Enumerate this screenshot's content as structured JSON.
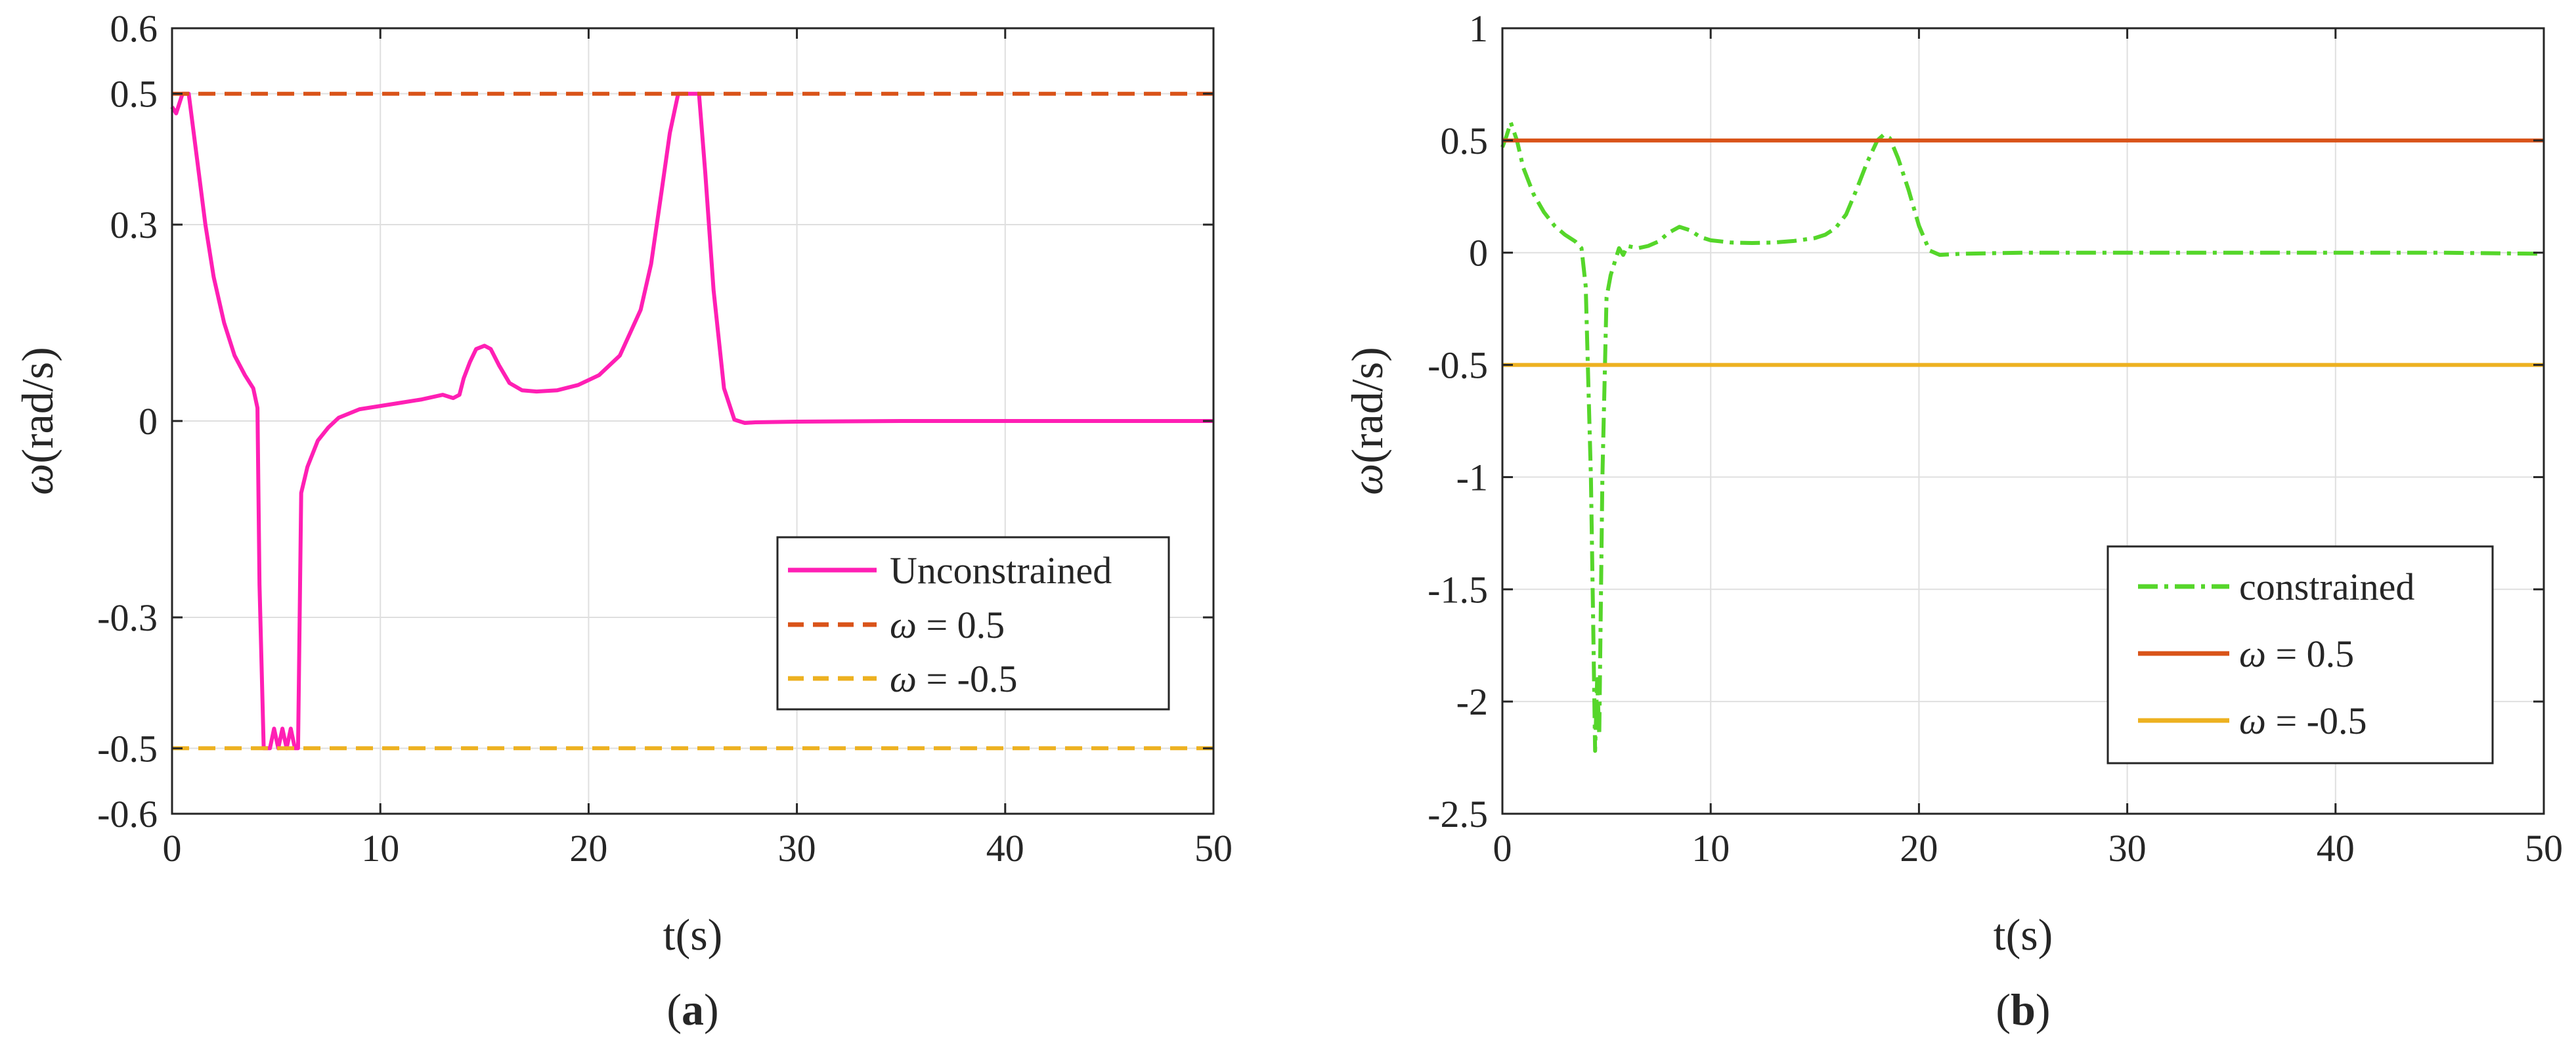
{
  "chart_data": [
    {
      "type": "line",
      "id": "a",
      "caption": {
        "open": "(",
        "letter": "a",
        "close": ")"
      },
      "xlabel": "t(s)",
      "ylabel_symbol": "ω",
      "ylabel_unit": "(rad/s)",
      "xlim": [
        0,
        50
      ],
      "ylim": [
        -0.6,
        0.6
      ],
      "xticks": [
        0,
        10,
        20,
        30,
        40,
        50
      ],
      "xtick_labels": [
        "0",
        "10",
        "20",
        "30",
        "40",
        "50"
      ],
      "yticks": [
        -0.6,
        -0.5,
        -0.3,
        0,
        0.3,
        0.5,
        0.6
      ],
      "ytick_labels": [
        "-0.6",
        "-0.5",
        "-0.3",
        "0",
        "0.3",
        "0.5",
        "0.6"
      ],
      "grid": true,
      "legend_position": "lower-right",
      "series": [
        {
          "name": "Unconstrained",
          "symbol": "",
          "equals": "",
          "color": "#ff1fb4",
          "style": "solid",
          "x": [
            0,
            0.2,
            0.5,
            0.8,
            1.2,
            1.6,
            2.0,
            2.5,
            3.0,
            3.5,
            3.9,
            4.1,
            4.2,
            4.4,
            4.7,
            4.9,
            5.1,
            5.3,
            5.5,
            5.7,
            5.9,
            6.05,
            6.2,
            6.5,
            7.0,
            7.5,
            8.0,
            9.0,
            10.0,
            11.0,
            12.0,
            13.0,
            13.5,
            13.8,
            14.0,
            14.3,
            14.6,
            15.0,
            15.3,
            15.7,
            16.2,
            16.8,
            17.5,
            18.5,
            19.5,
            20.5,
            21.5,
            22.5,
            23.0,
            23.5,
            23.9,
            24.3,
            24.5,
            25.0,
            25.3,
            25.6,
            26.0,
            26.5,
            27.0,
            27.5,
            28.0,
            30.0,
            35.0,
            40.0,
            45.0,
            50.0
          ],
          "y": [
            0.48,
            0.47,
            0.5,
            0.5,
            0.4,
            0.3,
            0.22,
            0.15,
            0.1,
            0.07,
            0.05,
            0.02,
            -0.25,
            -0.5,
            -0.5,
            -0.47,
            -0.5,
            -0.47,
            -0.5,
            -0.47,
            -0.5,
            -0.5,
            -0.11,
            -0.07,
            -0.03,
            -0.01,
            0.005,
            0.018,
            0.023,
            0.028,
            0.033,
            0.04,
            0.035,
            0.04,
            0.065,
            0.09,
            0.11,
            0.115,
            0.11,
            0.085,
            0.058,
            0.047,
            0.045,
            0.047,
            0.055,
            0.07,
            0.1,
            0.17,
            0.24,
            0.35,
            0.44,
            0.5,
            0.5,
            0.5,
            0.5,
            0.38,
            0.2,
            0.05,
            0.002,
            -0.003,
            -0.002,
            -0.001,
            0.0,
            0.0,
            0.0,
            0.0
          ]
        },
        {
          "name": "",
          "symbol": "ω",
          "equals": " = 0.5",
          "color": "#d95319",
          "style": "dashed",
          "x": [
            0,
            50
          ],
          "y": [
            0.5,
            0.5
          ]
        },
        {
          "name": "",
          "symbol": "ω",
          "equals": " = -0.5",
          "color": "#edb120",
          "style": "dashed",
          "x": [
            0,
            50
          ],
          "y": [
            -0.5,
            -0.5
          ]
        }
      ]
    },
    {
      "type": "line",
      "id": "b",
      "caption": {
        "open": "(",
        "letter": "b",
        "close": ")"
      },
      "xlabel": "t(s)",
      "ylabel_symbol": "ω",
      "ylabel_unit": "(rad/s)",
      "xlim": [
        0,
        50
      ],
      "ylim": [
        -2.5,
        1
      ],
      "xticks": [
        0,
        10,
        20,
        30,
        40,
        50
      ],
      "xtick_labels": [
        "0",
        "10",
        "20",
        "30",
        "40",
        "50"
      ],
      "yticks": [
        -2.5,
        -2,
        -1.5,
        -1,
        -0.5,
        0,
        0.5,
        1
      ],
      "ytick_labels": [
        "-2.5",
        "-2",
        "-1.5",
        "-1",
        "-0.5",
        "0",
        "0.5",
        "1"
      ],
      "grid": true,
      "legend_position": "lower-right",
      "series": [
        {
          "name": "constrained",
          "symbol": "",
          "equals": "",
          "color": "#55d62a",
          "style": "dashdot",
          "x": [
            0,
            0.2,
            0.4,
            0.7,
            1.0,
            1.5,
            2.0,
            2.5,
            3.0,
            3.5,
            3.8,
            4.0,
            4.1,
            4.25,
            4.35,
            4.45,
            4.55,
            4.65,
            4.8,
            5.0,
            5.2,
            5.4,
            5.6,
            5.8,
            6.0,
            6.5,
            7.0,
            7.5,
            8.0,
            8.5,
            9.0,
            9.5,
            10.0,
            11.0,
            12.0,
            13.0,
            14.0,
            15.0,
            15.5,
            16.0,
            16.5,
            17.0,
            17.5,
            18.0,
            18.3,
            18.6,
            19.0,
            19.5,
            20.0,
            20.5,
            21.0,
            22.0,
            25.0,
            30.0,
            35.0,
            40.0,
            45.0,
            50.0
          ],
          "y": [
            0.47,
            0.52,
            0.58,
            0.5,
            0.38,
            0.26,
            0.18,
            0.12,
            0.08,
            0.05,
            0.02,
            -0.15,
            -0.5,
            -1.0,
            -1.6,
            -2.22,
            -1.9,
            -2.15,
            -1.0,
            -0.2,
            -0.1,
            -0.04,
            0.02,
            -0.01,
            0.03,
            0.02,
            0.03,
            0.05,
            0.09,
            0.115,
            0.1,
            0.07,
            0.055,
            0.045,
            0.043,
            0.045,
            0.052,
            0.065,
            0.08,
            0.11,
            0.17,
            0.28,
            0.4,
            0.5,
            0.525,
            0.51,
            0.42,
            0.28,
            0.12,
            0.01,
            -0.01,
            -0.005,
            0.0,
            0.0,
            0.0,
            0.0,
            0.0,
            -0.005
          ]
        },
        {
          "name": "",
          "symbol": "ω",
          "equals": " = 0.5",
          "color": "#d95319",
          "style": "solid",
          "x": [
            0,
            50
          ],
          "y": [
            0.5,
            0.5
          ]
        },
        {
          "name": "",
          "symbol": "ω",
          "equals": " = -0.5",
          "color": "#edb120",
          "style": "solid",
          "x": [
            0,
            50
          ],
          "y": [
            -0.5,
            -0.5
          ]
        }
      ]
    }
  ]
}
